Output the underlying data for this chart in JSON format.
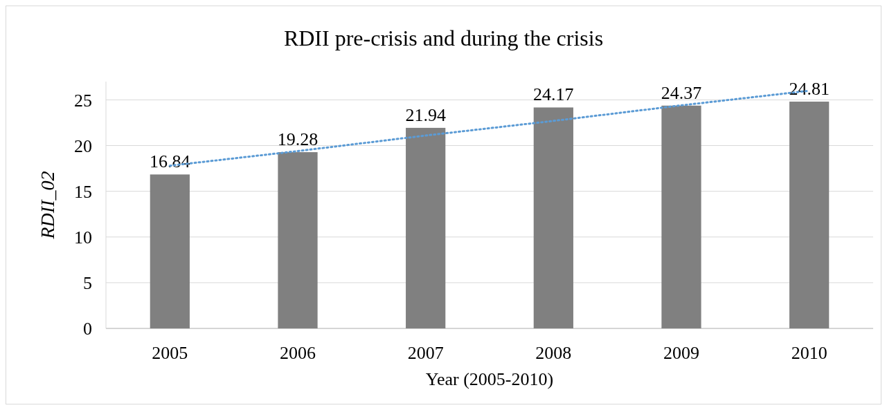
{
  "chart_data": {
    "type": "bar",
    "title": "RDII pre-crisis and during the crisis",
    "xlabel": "Year (2005-2010)",
    "ylabel": "RDII_02",
    "categories": [
      "2005",
      "2006",
      "2007",
      "2008",
      "2009",
      "2010"
    ],
    "series": [
      {
        "color": "#808080",
        "values": [
          16.84,
          19.28,
          21.94,
          24.17,
          24.37,
          24.81
        ],
        "value_labels": [
          "16.84",
          "19.28",
          "21.94",
          "24.17",
          "24.37",
          "24.81"
        ]
      },
      {
        "type": "line",
        "color": "#5b9bd5",
        "line_style": "dotted",
        "marker": "none",
        "values": [
          17.8,
          19.4,
          21.1,
          22.7,
          24.4,
          26.0
        ]
      }
    ],
    "ylim": [
      0,
      27
    ],
    "yticks": [
      0,
      5,
      10,
      15,
      20,
      25
    ],
    "grid": "y"
  }
}
